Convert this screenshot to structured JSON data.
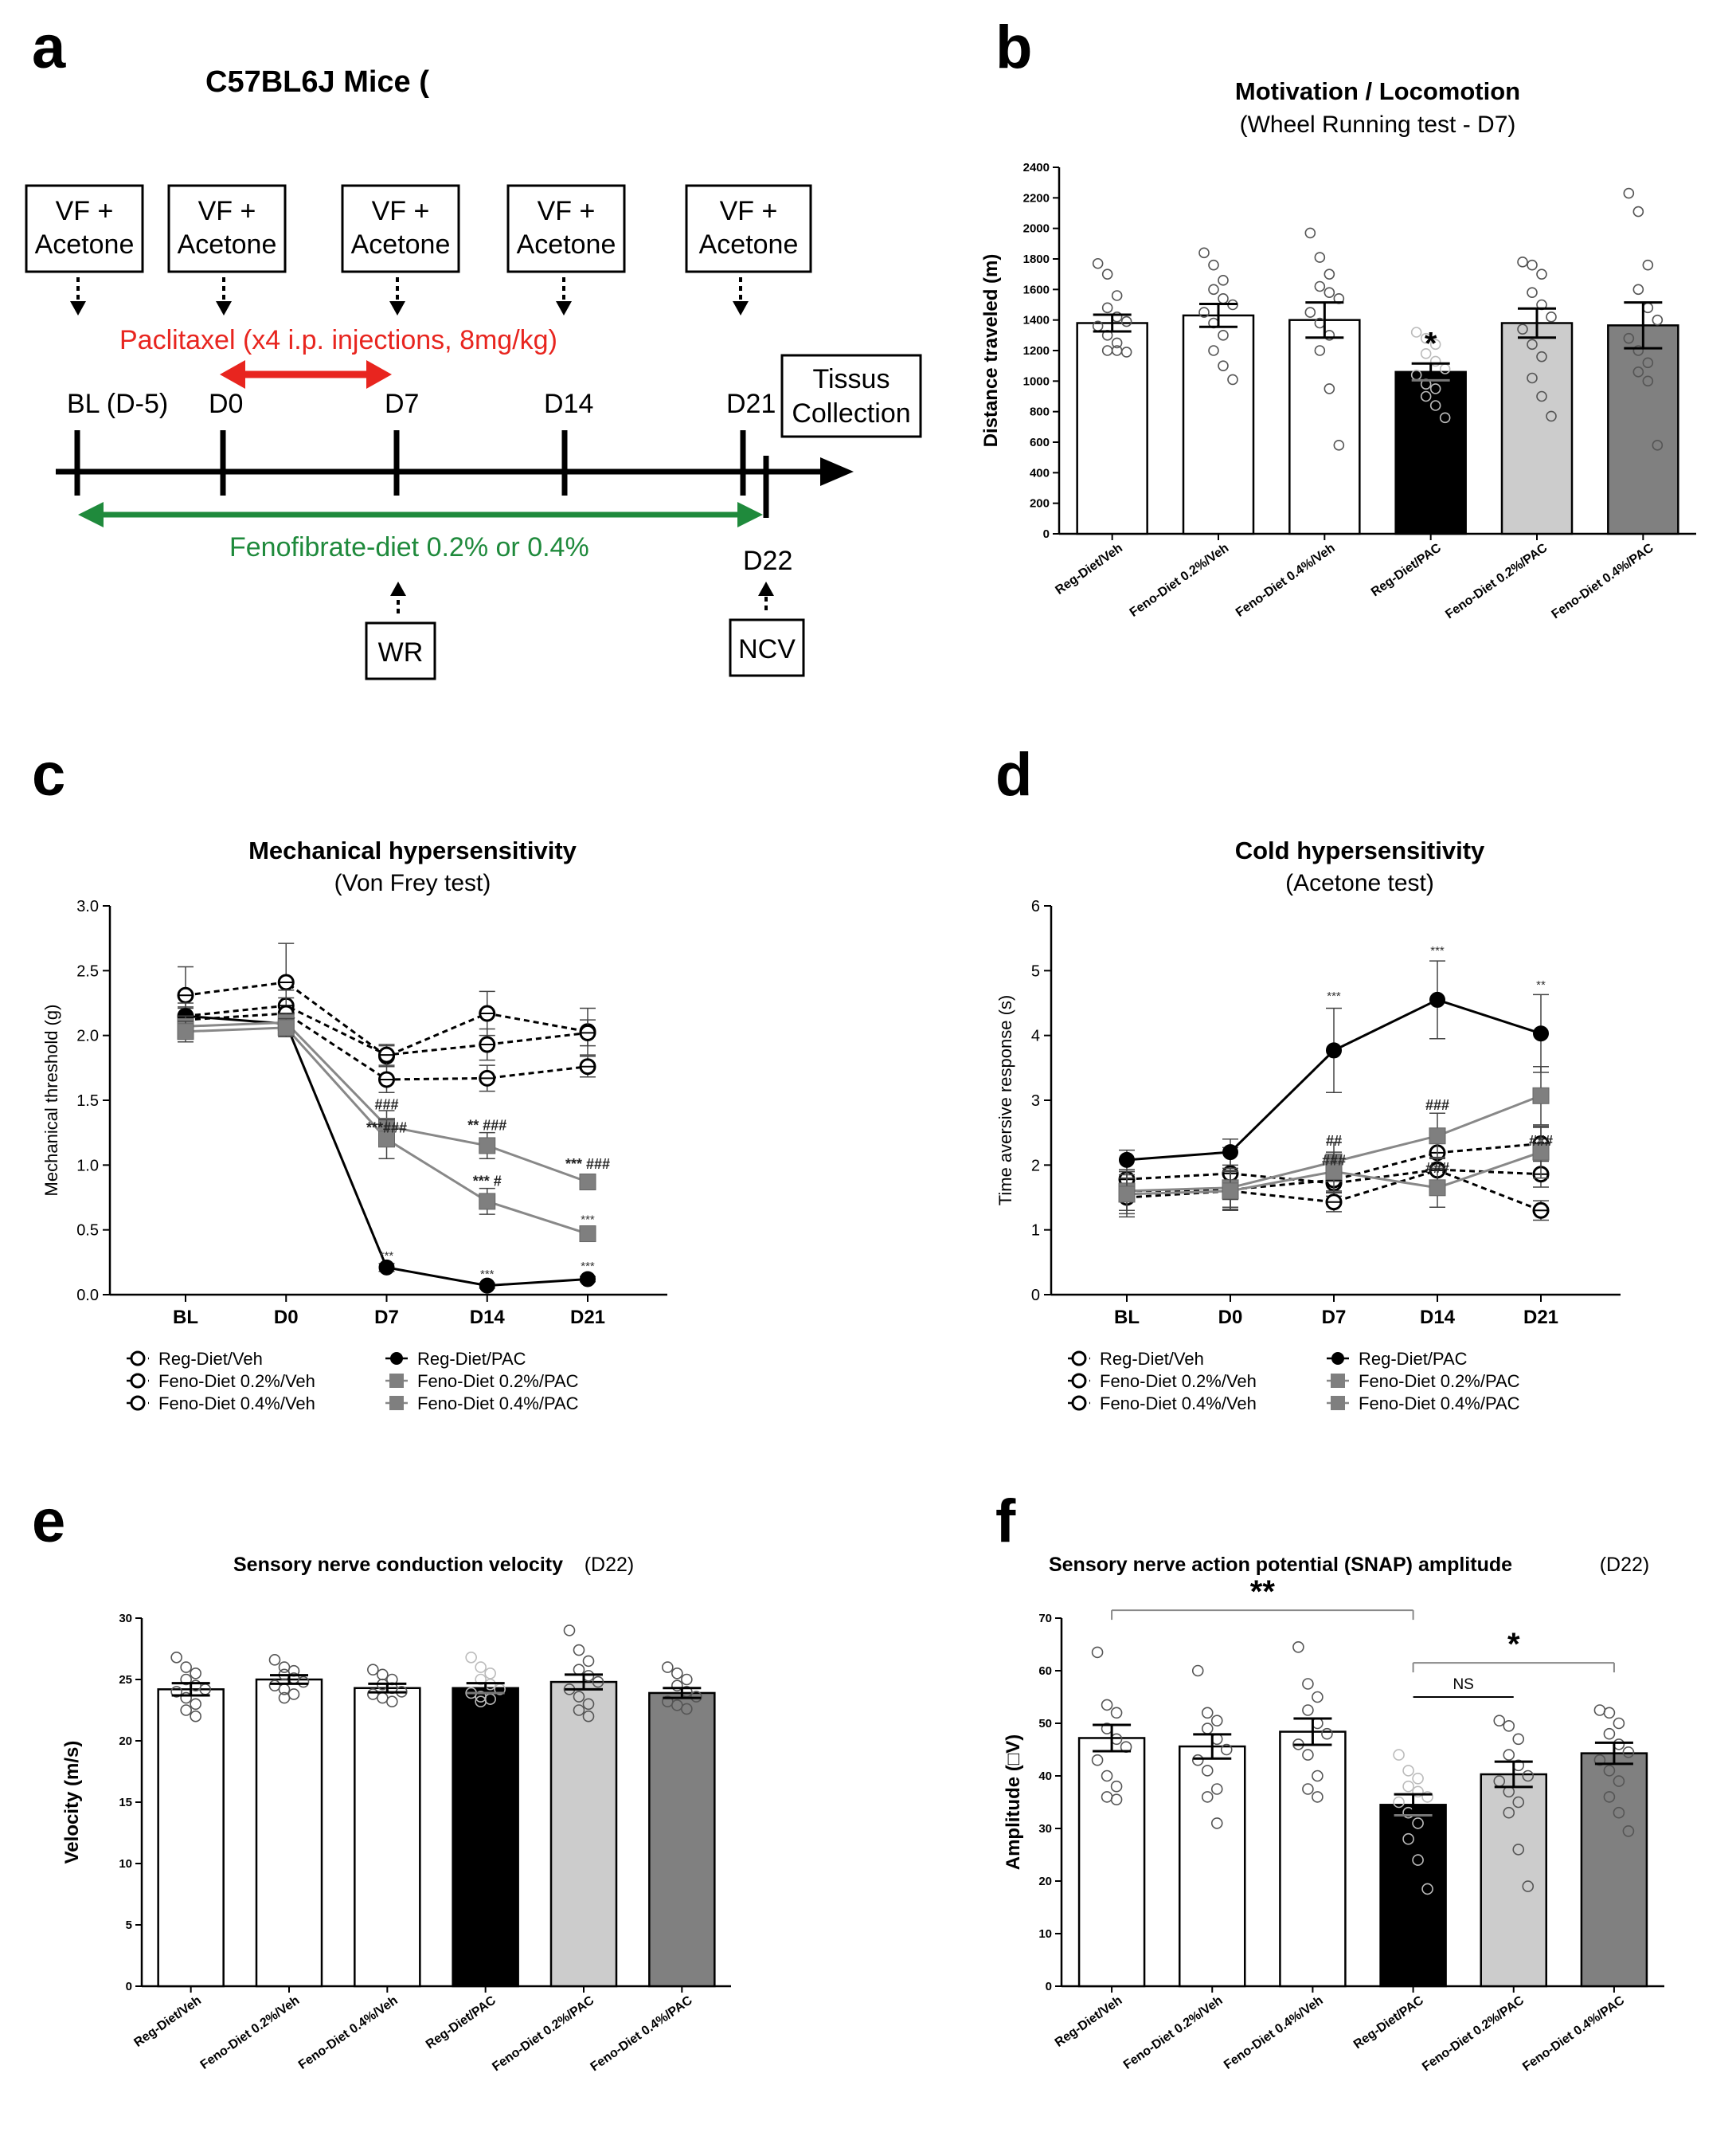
{
  "panels": {
    "a": {
      "letter": "a",
      "title": "C57BL6J Mice (",
      "boxes": [
        {
          "line1": "VF +",
          "line2": "Acetone"
        },
        {
          "line1": "VF +",
          "line2": "Acetone"
        },
        {
          "line1": "VF +",
          "line2": "Acetone"
        },
        {
          "line1": "VF +",
          "line2": "Acetone"
        },
        {
          "line1": "VF +",
          "line2": "Acetone"
        }
      ],
      "paclitaxel": "Paclitaxel (x4 i.p. injections, 8mg/kg)",
      "timepoints": [
        "BL (D-5)",
        "D0",
        "D7",
        "D14",
        "D21"
      ],
      "collection": {
        "line1": "Tissus",
        "line2": "Collection"
      },
      "fenofibrate": "Fenofibrate-diet 0.2% or 0.4%",
      "d22": "D22",
      "wr": "WR",
      "ncv": "NCV",
      "colors": {
        "red": "#e8251f",
        "green": "#1f8a3c"
      }
    },
    "b": {
      "letter": "b"
    },
    "c": {
      "letter": "c"
    },
    "d": {
      "letter": "d"
    },
    "e": {
      "letter": "e"
    },
    "f": {
      "letter": "f"
    }
  },
  "groups": [
    "Reg-Diet/Veh",
    "Feno-Diet 0.2%/Veh",
    "Feno-Diet 0.4%/Veh",
    "Reg-Diet/PAC",
    "Feno-Diet 0.2%/PAC",
    "Feno-Diet 0.4%/PAC"
  ],
  "group_xlabels": [
    "Reg-Diet/Veh",
    "Feno-Diet 0.2%/Veh",
    "Feno-Diet 0.4%/Veh",
    "Reg-Diet/PAC",
    "Feno-Diet 0.2%/PAC",
    "Feno-Diet 0.4%/PAC"
  ],
  "bar_colors": [
    "#ffffff",
    "#ffffff",
    "#ffffff",
    "#000000",
    "#cccccc",
    "#808080"
  ],
  "chart_data": [
    {
      "id": "b",
      "type": "bar",
      "title": "Motivation / Locomotion",
      "subtitle": "(Wheel Running test - D7)",
      "ylabel": "Distance traveled (m)",
      "ylim": [
        0,
        2400
      ],
      "yticks": [
        0,
        200,
        400,
        600,
        800,
        1000,
        1200,
        1400,
        1600,
        1800,
        2000,
        2200,
        2400
      ],
      "values": [
        1380,
        1430,
        1400,
        1060,
        1380,
        1365
      ],
      "errors": [
        55,
        75,
        115,
        55,
        95,
        150
      ],
      "significance": [
        "",
        "",
        "",
        "*",
        "",
        ""
      ],
      "points": [
        [
          1770,
          1700,
          1560,
          1480,
          1420,
          1390,
          1360,
          1300,
          1250,
          1200,
          1200,
          1190
        ],
        [
          1840,
          1760,
          1660,
          1600,
          1540,
          1500,
          1450,
          1380,
          1300,
          1200,
          1100,
          1010
        ],
        [
          1970,
          1810,
          1700,
          1620,
          1580,
          1540,
          1450,
          1380,
          1300,
          1200,
          950,
          580
        ],
        [
          1320,
          1280,
          1240,
          1180,
          1130,
          1080,
          1040,
          980,
          950,
          900,
          840,
          760
        ],
        [
          1780,
          1760,
          1700,
          1580,
          1500,
          1420,
          1340,
          1240,
          1160,
          1020,
          900,
          770
        ],
        [
          2230,
          2110,
          1760,
          1600,
          1480,
          1400,
          1280,
          1200,
          1120,
          1060,
          1000,
          580
        ]
      ]
    },
    {
      "id": "c",
      "type": "line",
      "title": "Mechanical hypersensitivity",
      "subtitle": "(Von Frey test)",
      "ylabel": "Mechanical threshold (g)",
      "categories": [
        "BL",
        "D0",
        "D7",
        "D14",
        "D21"
      ],
      "ylim": [
        0,
        3
      ],
      "yticks": [
        "0.0",
        "0.5",
        "1.0",
        "1.5",
        "2.0",
        "2.5",
        "3.0"
      ],
      "series": [
        {
          "name": "Reg-Diet/Veh",
          "style": "open-circle",
          "values": [
            2.31,
            2.41,
            1.84,
            2.17,
            2.03
          ],
          "errors": [
            0.22,
            0.3,
            0.08,
            0.17,
            0.18
          ]
        },
        {
          "name": "Feno-Diet 0.2%/Veh",
          "style": "open-circle",
          "values": [
            2.15,
            2.23,
            1.85,
            1.93,
            2.02
          ],
          "errors": [
            0.1,
            0.12,
            0.08,
            0.12,
            0.1
          ]
        },
        {
          "name": "Feno-Diet 0.4%/Veh",
          "style": "open-circle",
          "values": [
            2.12,
            2.17,
            1.66,
            1.67,
            1.76
          ],
          "errors": [
            0.1,
            0.12,
            0.1,
            0.1,
            0.08
          ]
        },
        {
          "name": "Reg-Diet/PAC",
          "style": "filled-circle",
          "values": [
            2.15,
            2.09,
            0.21,
            0.07,
            0.12
          ],
          "errors": [
            0.06,
            0.05,
            0.03,
            0.02,
            0.02
          ]
        },
        {
          "name": "Feno-Diet 0.2%/PAC",
          "style": "gray-square",
          "values": [
            2.07,
            2.1,
            1.3,
            1.15,
            0.87
          ],
          "errors": [
            0.08,
            0.07,
            0.12,
            0.1,
            0.06
          ]
        },
        {
          "name": "Feno-Diet 0.4%/PAC",
          "style": "gray-square",
          "values": [
            2.03,
            2.06,
            1.2,
            0.72,
            0.47
          ],
          "errors": [
            0.08,
            0.07,
            0.15,
            0.1,
            0.05
          ]
        }
      ],
      "annotations": [
        {
          "cat": 2,
          "y": 1.43,
          "text": "###",
          "cls": "hash"
        },
        {
          "cat": 2,
          "y": 1.25,
          "text": "***###",
          "cls": "hash"
        },
        {
          "cat": 2,
          "y": 0.27,
          "text": "***",
          "cls": "star"
        },
        {
          "cat": 3,
          "y": 1.27,
          "text": "** ###",
          "cls": "hash"
        },
        {
          "cat": 3,
          "y": 0.84,
          "text": "*** #",
          "cls": "hash"
        },
        {
          "cat": 3,
          "y": 0.13,
          "text": "***",
          "cls": "star"
        },
        {
          "cat": 4,
          "y": 0.97,
          "text": "*** ###",
          "cls": "hash"
        },
        {
          "cat": 4,
          "y": 0.55,
          "text": "***",
          "cls": "star"
        },
        {
          "cat": 4,
          "y": 0.19,
          "text": "***",
          "cls": "star"
        }
      ]
    },
    {
      "id": "d",
      "type": "line",
      "title": "Cold hypersensitivity",
      "subtitle": "(Acetone test)",
      "ylabel": "Time aversive response (s)",
      "categories": [
        "BL",
        "D0",
        "D7",
        "D14",
        "D21"
      ],
      "ylim": [
        0,
        6
      ],
      "yticks": [
        "0",
        "1",
        "2",
        "3",
        "4",
        "5",
        "6"
      ],
      "series": [
        {
          "name": "Reg-Diet/Veh",
          "style": "open-circle",
          "values": [
            1.78,
            1.87,
            1.72,
            1.93,
            1.86
          ],
          "errors": [
            0.3,
            0.4,
            0.2,
            0.25,
            0.2
          ]
        },
        {
          "name": "Feno-Diet 0.2%/Veh",
          "style": "open-circle",
          "values": [
            1.6,
            1.62,
            1.77,
            2.19,
            2.33
          ],
          "errors": [
            0.3,
            0.3,
            0.2,
            0.25,
            0.25
          ]
        },
        {
          "name": "Feno-Diet 0.4%/Veh",
          "style": "open-circle",
          "values": [
            1.5,
            1.6,
            1.43,
            1.92,
            1.3
          ],
          "errors": [
            0.3,
            0.3,
            0.15,
            0.2,
            0.15
          ]
        },
        {
          "name": "Reg-Diet/PAC",
          "style": "filled-circle",
          "values": [
            2.08,
            2.2,
            3.77,
            4.55,
            4.03
          ],
          "errors": [
            0.15,
            0.2,
            0.65,
            0.6,
            0.6
          ]
        },
        {
          "name": "Feno-Diet 0.2%/PAC",
          "style": "gray-square",
          "values": [
            1.6,
            1.65,
            2.05,
            2.45,
            3.07
          ],
          "errors": [
            0.3,
            0.3,
            0.3,
            0.35,
            0.45
          ]
        },
        {
          "name": "Feno-Diet 0.4%/PAC",
          "style": "gray-square",
          "values": [
            1.55,
            1.6,
            1.9,
            1.65,
            2.2
          ],
          "errors": [
            0.3,
            0.3,
            0.3,
            0.3,
            0.4
          ]
        }
      ],
      "annotations": [
        {
          "cat": 2,
          "y": 4.55,
          "text": "***",
          "cls": "star"
        },
        {
          "cat": 2,
          "y": 2.3,
          "text": "##",
          "cls": "hash"
        },
        {
          "cat": 2,
          "y": 2.0,
          "text": "###",
          "cls": "hash"
        },
        {
          "cat": 3,
          "y": 5.25,
          "text": "***",
          "cls": "star"
        },
        {
          "cat": 3,
          "y": 2.85,
          "text": "###",
          "cls": "hash"
        },
        {
          "cat": 3,
          "y": 1.88,
          "text": "###",
          "cls": "hash"
        },
        {
          "cat": 4,
          "y": 4.72,
          "text": "**",
          "cls": "star"
        },
        {
          "cat": 4,
          "y": 2.3,
          "text": "###",
          "cls": "hash"
        }
      ]
    },
    {
      "id": "e",
      "type": "bar",
      "title": "Sensory nerve conduction velocity",
      "subtitle": "(D22)",
      "ylabel": "Velocity (m/s)",
      "ylim": [
        0,
        30
      ],
      "yticks": [
        0,
        5,
        10,
        15,
        20,
        25,
        30
      ],
      "values": [
        24.2,
        25.0,
        24.3,
        24.3,
        24.8,
        23.9
      ],
      "errors": [
        0.5,
        0.35,
        0.35,
        0.4,
        0.6,
        0.4
      ],
      "significance": [
        "",
        "",
        "",
        "",
        "",
        ""
      ],
      "points": [
        [
          26.8,
          26.0,
          25.5,
          25.0,
          24.5,
          24.2,
          24.0,
          23.5,
          23.0,
          22.5,
          22.0
        ],
        [
          26.6,
          26.0,
          25.7,
          25.4,
          25.1,
          24.8,
          24.5,
          24.2,
          23.8,
          23.5
        ],
        [
          25.8,
          25.4,
          25.0,
          24.6,
          24.3,
          24.0,
          23.8,
          23.5,
          23.2
        ],
        [
          26.8,
          26.0,
          25.5,
          25.0,
          24.6,
          24.2,
          23.9,
          23.6,
          23.4,
          23.2
        ],
        [
          29.0,
          27.4,
          26.5,
          25.8,
          25.3,
          24.8,
          24.2,
          23.6,
          23.0,
          22.5,
          22.0
        ],
        [
          26.0,
          25.5,
          25.0,
          24.5,
          24.0,
          23.6,
          23.2,
          22.9,
          22.6
        ]
      ]
    },
    {
      "id": "f",
      "type": "bar",
      "title": "Sensory nerve action potential (SNAP) amplitude",
      "subtitle": "(D22)",
      "ylabel": "Amplitude (□V)",
      "ylim": [
        0,
        70
      ],
      "yticks": [
        0,
        10,
        20,
        30,
        40,
        50,
        60,
        70
      ],
      "values": [
        47.2,
        45.6,
        48.4,
        34.5,
        40.3,
        44.3
      ],
      "errors": [
        2.5,
        2.3,
        2.5,
        2.0,
        2.4,
        2.0
      ],
      "significance": [
        "",
        "",
        "",
        "",
        "",
        ""
      ],
      "brackets": [
        {
          "from": 0,
          "to": 3,
          "y": 71.5,
          "label": "**",
          "cls": "sig"
        },
        {
          "from": 3,
          "to": 5,
          "y": 61.5,
          "label": "*",
          "cls": "sig"
        },
        {
          "from": 3,
          "to": 4,
          "y": 55.0,
          "label": "NS",
          "cls": "sig-ns"
        }
      ],
      "points": [
        [
          63.5,
          53.5,
          52.0,
          49.0,
          47.0,
          45.5,
          43.0,
          40.0,
          38.0,
          36.0,
          35.5
        ],
        [
          60.0,
          52.0,
          50.5,
          49.0,
          47.0,
          45.0,
          43.0,
          41.0,
          37.5,
          36.0,
          31.0
        ],
        [
          64.5,
          57.5,
          55.0,
          52.5,
          50.0,
          48.0,
          46.0,
          44.0,
          40.0,
          37.5,
          36.0
        ],
        [
          44.0,
          41.0,
          39.5,
          38.0,
          37.0,
          36.0,
          35.0,
          33.0,
          31.0,
          28.0,
          24.0,
          18.5
        ],
        [
          50.5,
          49.5,
          47.0,
          44.0,
          42.0,
          40.0,
          39.0,
          37.0,
          35.0,
          33.0,
          26.0,
          19.0
        ],
        [
          52.5,
          52.0,
          50.0,
          48.0,
          46.0,
          44.5,
          43.0,
          41.0,
          39.0,
          36.0,
          33.0,
          29.5
        ]
      ]
    }
  ]
}
